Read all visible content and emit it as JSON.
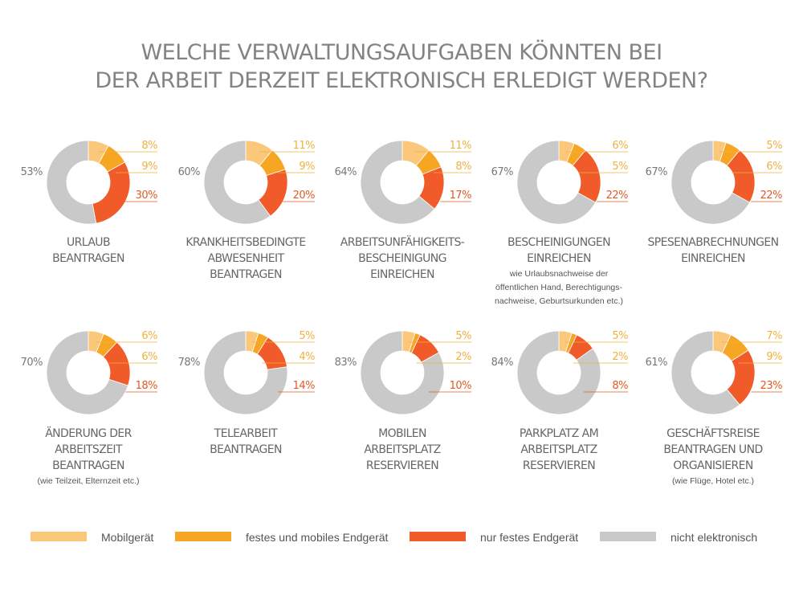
{
  "title": {
    "line1": "WELCHE VERWALTUNGSAUFGABEN KÖNNTEN BEI",
    "line2": "DER ARBEIT DERZEIT ELEKTRONISCH ERLEDIGT WERDEN?"
  },
  "colors": {
    "Mobilgerät": "#fbc77b",
    "festes und mobiles Endgerät": "#f6a623",
    "nur festes Endgerät": "#f15b2a",
    "nicht elektronisch": "#c9c9c9",
    "label_light": "#f0b13f",
    "label_dark": "#e25a22",
    "label_gray": "#777777"
  },
  "legend": [
    {
      "label": "Mobilgerät",
      "color": "#fbc77b"
    },
    {
      "label": "festes und mobiles Endgerät",
      "color": "#f6a623"
    },
    {
      "label": "nur festes Endgerät",
      "color": "#f15b2a"
    },
    {
      "label": "nicht elektronisch",
      "color": "#c9c9c9"
    }
  ],
  "chart_data": {
    "type": "pie",
    "variant": "donut",
    "unit": "%",
    "series_names": [
      "Mobilgerät",
      "festes und mobiles Endgerät",
      "nur festes Endgerät",
      "nicht elektronisch"
    ],
    "charts": [
      {
        "caption": [
          "URLAUB",
          "BEANTRAGEN"
        ],
        "note": [],
        "values": [
          8,
          9,
          30,
          53
        ]
      },
      {
        "caption": [
          "KRANKHEITSBEDINGTE",
          "ABWESENHEIT",
          "BEANTRAGEN"
        ],
        "note": [],
        "values": [
          11,
          9,
          20,
          60
        ]
      },
      {
        "caption": [
          "ARBEITSUNFÄHIGKEITS-",
          "BESCHEINIGUNG",
          "EINREICHEN"
        ],
        "note": [],
        "values": [
          11,
          8,
          17,
          64
        ]
      },
      {
        "caption": [
          "BESCHEINIGUNGEN",
          "EINREICHEN"
        ],
        "note": [
          "wie Urlaubsnachweise der",
          "öffentlichen Hand, Berechtigungs-",
          "nachweise, Geburtsurkunden etc.)"
        ],
        "values": [
          6,
          5,
          22,
          67
        ]
      },
      {
        "caption": [
          "SPESENABRECHNUNGEN",
          "EINREICHEN"
        ],
        "note": [],
        "values": [
          5,
          6,
          22,
          67
        ]
      },
      {
        "caption": [
          "ÄNDERUNG DER",
          "ARBEITSZEIT",
          "BEANTRAGEN"
        ],
        "note": [
          "(wie Teilzeit, Elternzeit etc.)"
        ],
        "values": [
          6,
          6,
          18,
          70
        ]
      },
      {
        "caption": [
          "TELEARBEIT",
          "BEANTRAGEN"
        ],
        "note": [],
        "values": [
          5,
          4,
          14,
          78
        ]
      },
      {
        "caption": [
          "MOBILEN",
          "ARBEITSPLATZ",
          "RESERVIEREN"
        ],
        "note": [],
        "values": [
          5,
          2,
          10,
          83
        ]
      },
      {
        "caption": [
          "PARKPLATZ AM",
          "ARBEITSPLATZ",
          "RESERVIEREN"
        ],
        "note": [],
        "values": [
          5,
          2,
          8,
          84
        ]
      },
      {
        "caption": [
          "GESCHÄFTSREISE",
          "BEANTRAGEN UND",
          "ORGANISIEREN"
        ],
        "note": [
          "(wie Flüge, Hotel etc.)"
        ],
        "values": [
          7,
          9,
          23,
          61
        ]
      }
    ]
  }
}
